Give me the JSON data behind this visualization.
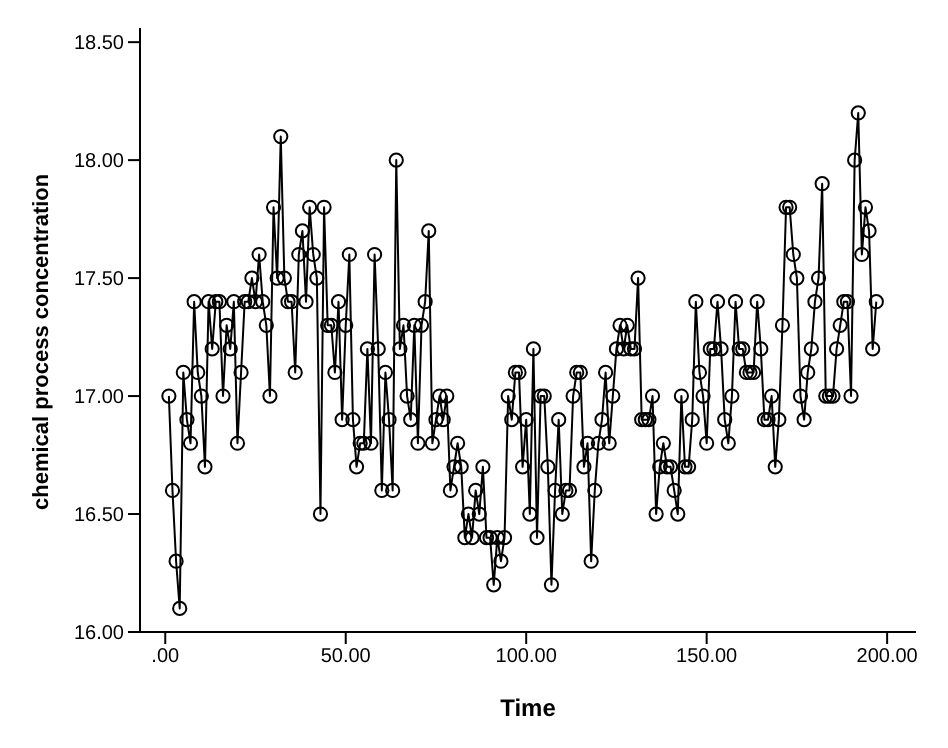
{
  "chart_data": {
    "type": "line",
    "xlabel": "Time",
    "ylabel": "chemical process concentration",
    "x": [
      1,
      2,
      3,
      4,
      5,
      6,
      7,
      8,
      9,
      10,
      11,
      12,
      13,
      14,
      15,
      16,
      17,
      18,
      19,
      20,
      21,
      22,
      23,
      24,
      25,
      26,
      27,
      28,
      29,
      30,
      31,
      32,
      33,
      34,
      35,
      36,
      37,
      38,
      39,
      40,
      41,
      42,
      43,
      44,
      45,
      46,
      47,
      48,
      49,
      50,
      51,
      52,
      53,
      54,
      55,
      56,
      57,
      58,
      59,
      60,
      61,
      62,
      63,
      64,
      65,
      66,
      67,
      68,
      69,
      70,
      71,
      72,
      73,
      74,
      75,
      76,
      77,
      78,
      79,
      80,
      81,
      82,
      83,
      84,
      85,
      86,
      87,
      88,
      89,
      90,
      91,
      92,
      93,
      94,
      95,
      96,
      97,
      98,
      99,
      100,
      101,
      102,
      103,
      104,
      105,
      106,
      107,
      108,
      109,
      110,
      111,
      112,
      113,
      114,
      115,
      116,
      117,
      118,
      119,
      120,
      121,
      122,
      123,
      124,
      125,
      126,
      127,
      128,
      129,
      130,
      131,
      132,
      133,
      134,
      135,
      136,
      137,
      138,
      139,
      140,
      141,
      142,
      143,
      144,
      145,
      146,
      147,
      148,
      149,
      150,
      151,
      152,
      153,
      154,
      155,
      156,
      157,
      158,
      159,
      160,
      161,
      162,
      163,
      164,
      165,
      166,
      167,
      168,
      169,
      170,
      171,
      172,
      173,
      174,
      175,
      176,
      177,
      178,
      179,
      180,
      181,
      182,
      183,
      184,
      185,
      186,
      187,
      188,
      189,
      190,
      191,
      192,
      193,
      194,
      195,
      196,
      197
    ],
    "series": [
      {
        "color": "#000000",
        "values": [
          17.0,
          16.6,
          16.3,
          16.1,
          17.1,
          16.9,
          16.8,
          17.4,
          17.1,
          17.0,
          16.7,
          17.4,
          17.2,
          17.4,
          17.4,
          17.0,
          17.3,
          17.2,
          17.4,
          16.8,
          17.1,
          17.4,
          17.4,
          17.5,
          17.4,
          17.6,
          17.4,
          17.3,
          17.0,
          17.8,
          17.5,
          18.1,
          17.5,
          17.4,
          17.4,
          17.1,
          17.6,
          17.7,
          17.4,
          17.8,
          17.6,
          17.5,
          16.5,
          17.8,
          17.3,
          17.3,
          17.1,
          17.4,
          16.9,
          17.3,
          17.6,
          16.9,
          16.7,
          16.8,
          16.8,
          17.2,
          16.8,
          17.6,
          17.2,
          16.6,
          17.1,
          16.9,
          16.6,
          18.0,
          17.2,
          17.3,
          17.0,
          16.9,
          17.3,
          16.8,
          17.3,
          17.4,
          17.7,
          16.8,
          16.9,
          17.0,
          16.9,
          17.0,
          16.6,
          16.7,
          16.8,
          16.7,
          16.4,
          16.5,
          16.4,
          16.6,
          16.5,
          16.7,
          16.4,
          16.4,
          16.2,
          16.4,
          16.3,
          16.4,
          17.0,
          16.9,
          17.1,
          17.1,
          16.7,
          16.9,
          16.5,
          17.2,
          16.4,
          17.0,
          17.0,
          16.7,
          16.2,
          16.6,
          16.9,
          16.5,
          16.6,
          16.6,
          17.0,
          17.1,
          17.1,
          16.7,
          16.8,
          16.3,
          16.6,
          16.8,
          16.9,
          17.1,
          16.8,
          17.0,
          17.2,
          17.3,
          17.2,
          17.3,
          17.2,
          17.2,
          17.5,
          16.9,
          16.9,
          16.9,
          17.0,
          16.5,
          16.7,
          16.8,
          16.7,
          16.7,
          16.6,
          16.5,
          17.0,
          16.7,
          16.7,
          16.9,
          17.4,
          17.1,
          17.0,
          16.8,
          17.2,
          17.2,
          17.4,
          17.2,
          16.9,
          16.8,
          17.0,
          17.4,
          17.2,
          17.2,
          17.1,
          17.1,
          17.1,
          17.4,
          17.2,
          16.9,
          16.9,
          17.0,
          16.7,
          16.9,
          17.3,
          17.8,
          17.8,
          17.6,
          17.5,
          17.0,
          16.9,
          17.1,
          17.2,
          17.4,
          17.5,
          17.9,
          17.0,
          17.0,
          17.0,
          17.2,
          17.3,
          17.4,
          17.4,
          17.0,
          18.0,
          18.2,
          17.6,
          17.8,
          17.7,
          17.2,
          17.4
        ]
      }
    ],
    "xlim": [
      -7,
      208
    ],
    "ylim": [
      16.0,
      18.56
    ],
    "xticks": [
      {
        "value": 0,
        "label": ".00"
      },
      {
        "value": 50,
        "label": "50.00"
      },
      {
        "value": 100,
        "label": "100.00"
      },
      {
        "value": 150,
        "label": "150.00"
      },
      {
        "value": 200,
        "label": "200.00"
      }
    ],
    "yticks": [
      {
        "value": 16.0,
        "label": "16.00"
      },
      {
        "value": 16.5,
        "label": "16.50"
      },
      {
        "value": 17.0,
        "label": "17.00"
      },
      {
        "value": 17.5,
        "label": "17.50"
      },
      {
        "value": 18.0,
        "label": "18.00"
      },
      {
        "value": 18.5,
        "label": "18.50"
      }
    ],
    "marker": "circle",
    "line_style": "solid",
    "grid": false,
    "legend": false
  }
}
